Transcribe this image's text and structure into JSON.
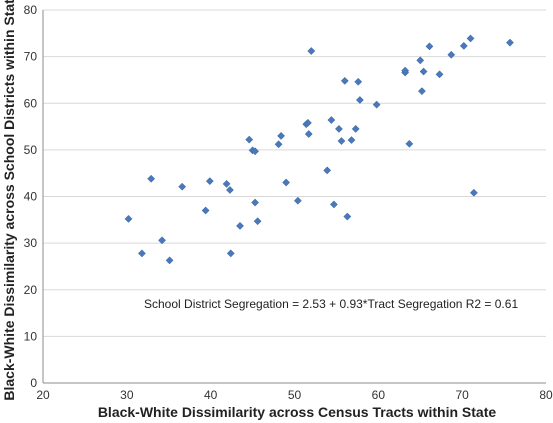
{
  "chart_data": {
    "type": "scatter",
    "title": "",
    "xlabel": "Black-White Dissimilarity across Census Tracts within State",
    "ylabel": "Black-White Dissimilarity across School Districts within State",
    "xlim": [
      20,
      80
    ],
    "ylim": [
      0,
      80
    ],
    "xticks": [
      20,
      30,
      40,
      50,
      60,
      70,
      80
    ],
    "yticks": [
      0,
      10,
      20,
      30,
      40,
      50,
      60,
      70,
      80
    ],
    "grid": "horizontal",
    "marker": "diamond",
    "marker_color": "#4a78b8",
    "annotation": "School District Segregation = 2.53 + 0.93*Tract Segregation  R2 = 0.61",
    "points": [
      [
        30.2,
        35.2
      ],
      [
        31.8,
        27.8
      ],
      [
        32.9,
        43.8
      ],
      [
        34.2,
        30.6
      ],
      [
        35.1,
        26.3
      ],
      [
        36.6,
        42.1
      ],
      [
        39.4,
        37.0
      ],
      [
        39.9,
        43.3
      ],
      [
        41.9,
        42.7
      ],
      [
        42.3,
        41.4
      ],
      [
        42.4,
        27.8
      ],
      [
        43.5,
        33.7
      ],
      [
        44.6,
        52.2
      ],
      [
        45.0,
        49.9
      ],
      [
        45.3,
        49.7
      ],
      [
        45.3,
        38.7
      ],
      [
        45.6,
        34.7
      ],
      [
        48.1,
        51.2
      ],
      [
        48.4,
        53.0
      ],
      [
        49.0,
        43.0
      ],
      [
        50.4,
        39.1
      ],
      [
        51.4,
        55.5
      ],
      [
        51.6,
        55.8
      ],
      [
        51.7,
        53.4
      ],
      [
        52.0,
        71.2
      ],
      [
        53.9,
        45.6
      ],
      [
        54.4,
        56.4
      ],
      [
        54.7,
        38.3
      ],
      [
        55.3,
        54.5
      ],
      [
        55.6,
        51.9
      ],
      [
        56.0,
        64.8
      ],
      [
        56.3,
        35.7
      ],
      [
        56.8,
        52.1
      ],
      [
        57.3,
        54.5
      ],
      [
        57.6,
        64.6
      ],
      [
        57.8,
        60.7
      ],
      [
        59.8,
        59.7
      ],
      [
        63.2,
        66.6
      ],
      [
        63.2,
        67.0
      ],
      [
        63.7,
        51.3
      ],
      [
        65.0,
        69.2
      ],
      [
        65.2,
        62.6
      ],
      [
        65.4,
        66.8
      ],
      [
        66.1,
        72.2
      ],
      [
        67.3,
        66.2
      ],
      [
        68.7,
        70.4
      ],
      [
        70.2,
        72.3
      ],
      [
        71.0,
        73.9
      ],
      [
        71.4,
        40.8
      ],
      [
        75.7,
        73.0
      ]
    ]
  }
}
